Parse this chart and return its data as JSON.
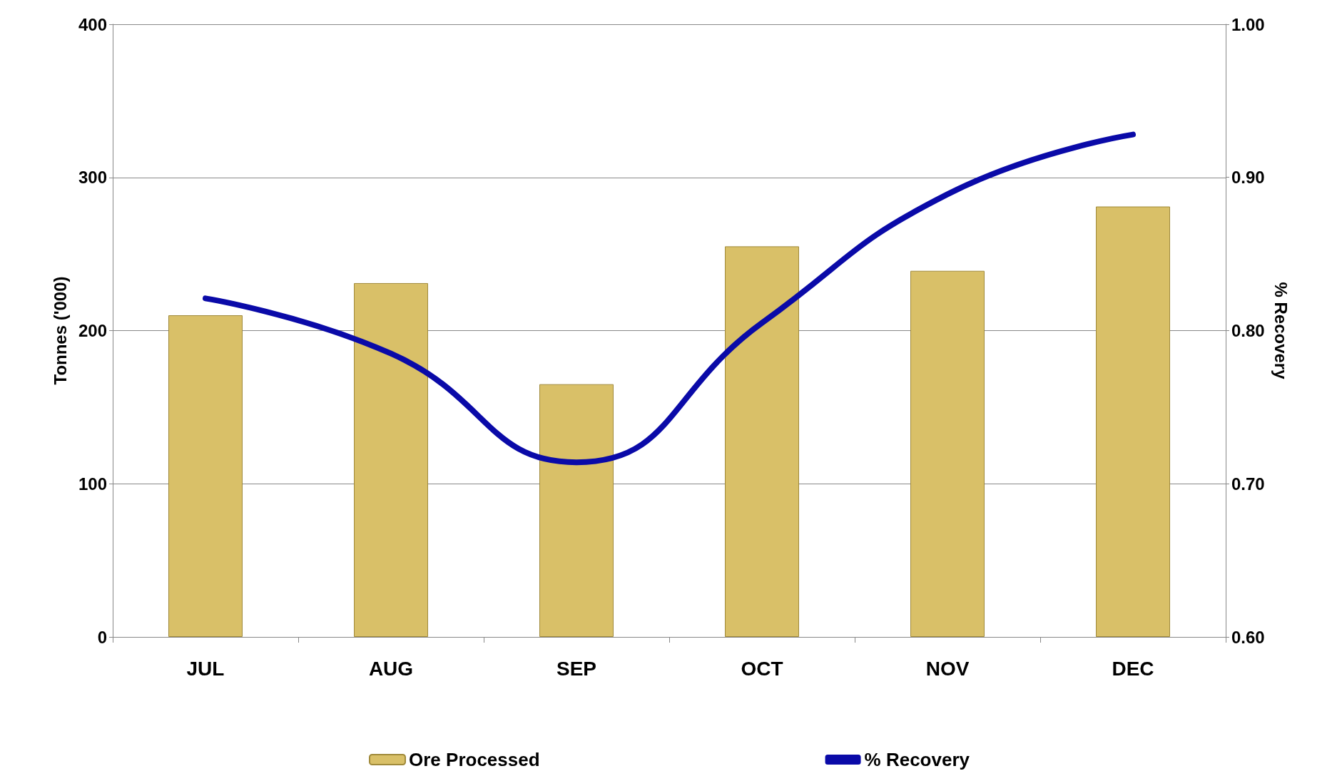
{
  "chart_data": {
    "type": "bar",
    "ylabel": "Tonnes ('000)",
    "y2label": "% Recovery",
    "categories": [
      "JUL",
      "AUG",
      "SEP",
      "OCT",
      "NOV",
      "DEC"
    ],
    "series": [
      {
        "name": "Ore Processed",
        "color": "#d9c068",
        "values": [
          210,
          231,
          165,
          255,
          239,
          281
        ]
      },
      {
        "name": "% Recovery",
        "type": "line",
        "axis": "y2",
        "color": "#0a0aa8",
        "values": [
          0.821,
          0.785,
          0.714,
          0.805,
          0.889,
          0.928
        ]
      }
    ],
    "ylim": [
      0,
      400
    ],
    "yticks": [
      0,
      100,
      200,
      300,
      400
    ],
    "y2lim": [
      0.6,
      1.0
    ],
    "y2ticks": [
      {
        "value": 0.6,
        "label": "0.60"
      },
      {
        "value": 0.7,
        "label": "0.70"
      },
      {
        "value": 0.8,
        "label": "0.80"
      },
      {
        "value": 0.9,
        "label": "0.90"
      },
      {
        "value": 1.0,
        "label": "1.00"
      }
    ],
    "grid": "y",
    "legend": "bottom",
    "marker": "none",
    "line_style": "solid"
  }
}
